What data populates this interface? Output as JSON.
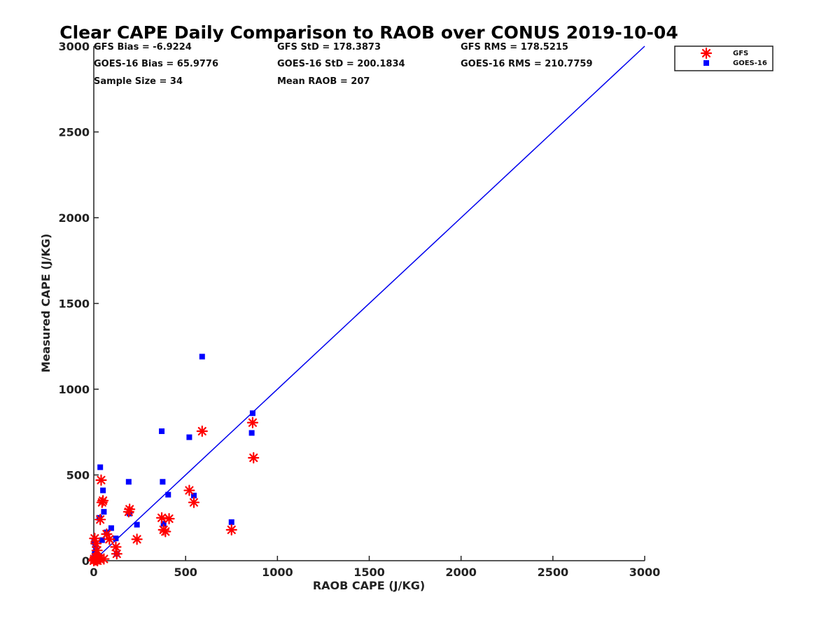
{
  "chart_data": {
    "type": "scatter",
    "title": "Clear CAPE Daily Comparison to RAOB over CONUS 2019-10-04",
    "xlabel": "RAOB CAPE (J/KG)",
    "ylabel": "Measured CAPE (J/KG)",
    "xlim": [
      0,
      3000
    ],
    "ylim": [
      0,
      3000
    ],
    "xticks": [
      0,
      500,
      1000,
      1500,
      2000,
      2500,
      3000
    ],
    "yticks": [
      0,
      500,
      1000,
      1500,
      2000,
      2500,
      3000
    ],
    "xtick_labels": [
      "0",
      "500",
      "1000",
      "1500",
      "2000",
      "2500",
      "3000"
    ],
    "ytick_labels": [
      "0",
      "500",
      "1000",
      "1500",
      "2000",
      "2500",
      "3000"
    ],
    "grid": false,
    "legend_position": "top-right, outside plot",
    "stats": {
      "gfs_bias": "GFS Bias = -6.9224",
      "gfs_std": "GFS StD = 178.3873",
      "gfs_rms": "GFS RMS = 178.5215",
      "goes_bias": "GOES-16 Bias = 65.9776",
      "goes_std": "GOES-16 StD = 200.1834",
      "goes_rms": "GOES-16 RMS = 210.7759",
      "sample_size": "Sample Size = 34",
      "mean_raob": "Mean RAOB = 207"
    },
    "one_to_one_line": {
      "from": [
        0,
        0
      ],
      "to": [
        3000,
        3000
      ],
      "color": "#0000ee"
    },
    "series": [
      {
        "name": "GFS",
        "marker": "asterisk",
        "color": "#ff0000",
        "x": [
          0,
          2,
          5,
          8,
          10,
          12,
          15,
          18,
          20,
          25,
          30,
          35,
          40,
          45,
          50,
          55,
          70,
          85,
          120,
          125,
          190,
          195,
          235,
          370,
          380,
          390,
          410,
          520,
          545,
          590,
          750,
          865,
          870
        ],
        "y": [
          0,
          10,
          130,
          5,
          20,
          100,
          5,
          60,
          0,
          15,
          10,
          240,
          470,
          340,
          350,
          10,
          155,
          125,
          80,
          40,
          285,
          300,
          125,
          250,
          180,
          170,
          245,
          410,
          340,
          755,
          180,
          805,
          600
        ]
      },
      {
        "name": "GOES-16",
        "marker": "square",
        "color": "#0000ff",
        "x": [
          0,
          2,
          5,
          8,
          10,
          12,
          15,
          18,
          25,
          30,
          35,
          45,
          50,
          55,
          70,
          95,
          120,
          125,
          190,
          195,
          235,
          370,
          375,
          380,
          405,
          520,
          545,
          590,
          750,
          860,
          865
        ],
        "y": [
          0,
          110,
          40,
          90,
          15,
          60,
          5,
          20,
          10,
          250,
          545,
          120,
          410,
          285,
          165,
          190,
          130,
          40,
          460,
          275,
          210,
          755,
          460,
          215,
          385,
          720,
          380,
          1190,
          225,
          745,
          860
        ]
      }
    ]
  },
  "legend": {
    "gfs_label": "GFS",
    "goes_label": "GOES-16",
    "gfs_color": "#ff0000",
    "goes_color": "#0000ff"
  }
}
